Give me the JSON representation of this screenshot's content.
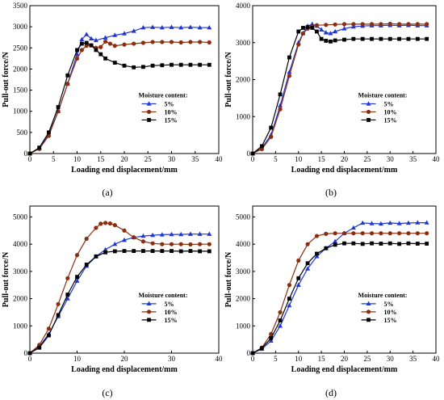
{
  "chart_data": [
    {
      "type": "line",
      "panel_label": "(a)",
      "xlabel": "Loading end displacement/mm",
      "ylabel": "Pull-out force/N",
      "xlim": [
        0,
        40
      ],
      "ylim": [
        0,
        3500
      ],
      "xticks": [
        0,
        5,
        10,
        15,
        20,
        25,
        30,
        35,
        40
      ],
      "yticks": [
        0,
        500,
        1000,
        1500,
        2000,
        2500,
        3000,
        3500
      ],
      "legend_title": "Moisture content:",
      "legend_position": "right-middle",
      "series": [
        {
          "name": "5%",
          "color": "#1f35d6",
          "marker": "triangle",
          "x": [
            0,
            2,
            4,
            6,
            8,
            10,
            11,
            12,
            13,
            14,
            16,
            18,
            20,
            22,
            24,
            26,
            28,
            30,
            32,
            34,
            36,
            38
          ],
          "y": [
            0,
            120,
            450,
            1000,
            1650,
            2350,
            2700,
            2820,
            2720,
            2680,
            2740,
            2800,
            2840,
            2900,
            2980,
            2990,
            2980,
            2990,
            2980,
            2990,
            2980,
            2980
          ]
        },
        {
          "name": "10%",
          "color": "#8b2d0e",
          "marker": "circle",
          "x": [
            0,
            2,
            4,
            6,
            8,
            10,
            11,
            12,
            13,
            14,
            15,
            16,
            17,
            18,
            20,
            22,
            24,
            26,
            28,
            30,
            32,
            34,
            36,
            38
          ],
          "y": [
            0,
            110,
            420,
            1000,
            1650,
            2250,
            2450,
            2550,
            2560,
            2500,
            2520,
            2650,
            2600,
            2550,
            2580,
            2600,
            2620,
            2640,
            2640,
            2640,
            2630,
            2640,
            2640,
            2630
          ]
        },
        {
          "name": "15%",
          "color": "#000000",
          "marker": "square",
          "x": [
            0,
            2,
            4,
            6,
            8,
            10,
            11,
            12,
            13,
            14,
            15,
            16,
            18,
            20,
            22,
            24,
            26,
            28,
            30,
            32,
            34,
            36,
            38
          ],
          "y": [
            0,
            140,
            500,
            1100,
            1850,
            2450,
            2600,
            2620,
            2560,
            2450,
            2350,
            2250,
            2150,
            2080,
            2040,
            2050,
            2080,
            2090,
            2100,
            2100,
            2100,
            2100,
            2100
          ]
        }
      ]
    },
    {
      "type": "line",
      "panel_label": "(b)",
      "xlabel": "Loading end displacement/mm",
      "ylabel": "Pull-out force/N",
      "xlim": [
        0,
        40
      ],
      "ylim": [
        0,
        4000
      ],
      "xticks": [
        0,
        5,
        10,
        15,
        20,
        25,
        30,
        35,
        40
      ],
      "yticks": [
        0,
        1000,
        2000,
        3000,
        4000
      ],
      "legend_title": "Moisture content:",
      "legend_position": "right-middle",
      "series": [
        {
          "name": "5%",
          "color": "#1f35d6",
          "marker": "triangle",
          "x": [
            0,
            2,
            4,
            6,
            8,
            10,
            11,
            12,
            13,
            14,
            15,
            16,
            17,
            18,
            20,
            22,
            24,
            26,
            28,
            30,
            32,
            34,
            36,
            38
          ],
          "y": [
            0,
            150,
            500,
            1300,
            2200,
            3000,
            3250,
            3450,
            3500,
            3450,
            3350,
            3270,
            3250,
            3300,
            3380,
            3430,
            3450,
            3460,
            3460,
            3470,
            3460,
            3470,
            3460,
            3460
          ]
        },
        {
          "name": "10%",
          "color": "#8b2d0e",
          "marker": "circle",
          "x": [
            0,
            2,
            4,
            6,
            8,
            10,
            11,
            12,
            13,
            14,
            16,
            18,
            20,
            22,
            24,
            26,
            28,
            30,
            32,
            34,
            36,
            38
          ],
          "y": [
            0,
            120,
            450,
            1200,
            2100,
            2950,
            3250,
            3380,
            3440,
            3470,
            3480,
            3490,
            3500,
            3500,
            3500,
            3500,
            3500,
            3510,
            3500,
            3500,
            3500,
            3500
          ]
        },
        {
          "name": "15%",
          "color": "#000000",
          "marker": "square",
          "x": [
            0,
            2,
            4,
            6,
            8,
            10,
            11,
            12,
            13,
            14,
            15,
            16,
            17,
            18,
            20,
            22,
            24,
            26,
            28,
            30,
            32,
            34,
            36,
            38
          ],
          "y": [
            0,
            200,
            700,
            1600,
            2600,
            3300,
            3400,
            3420,
            3400,
            3300,
            3100,
            3050,
            3030,
            3060,
            3080,
            3100,
            3100,
            3100,
            3100,
            3100,
            3100,
            3100,
            3100,
            3100
          ]
        }
      ]
    },
    {
      "type": "line",
      "panel_label": "(c)",
      "xlabel": "Loading end displacement/mm",
      "ylabel": "Pull-out force/N",
      "xlim": [
        0,
        40
      ],
      "ylim": [
        0,
        5400
      ],
      "xticks": [
        0,
        10,
        20,
        30,
        40
      ],
      "yticks": [
        0,
        1000,
        2000,
        3000,
        4000,
        5000
      ],
      "legend_title": "Moisture content:",
      "legend_position": "right-middle",
      "series": [
        {
          "name": "5%",
          "color": "#1f35d6",
          "marker": "triangle",
          "x": [
            0,
            2,
            4,
            6,
            8,
            10,
            12,
            14,
            16,
            18,
            20,
            22,
            24,
            26,
            28,
            30,
            32,
            34,
            36,
            38
          ],
          "y": [
            0,
            250,
            700,
            1350,
            2000,
            2650,
            3200,
            3550,
            3800,
            4000,
            4150,
            4250,
            4300,
            4330,
            4350,
            4360,
            4360,
            4370,
            4370,
            4370
          ]
        },
        {
          "name": "10%",
          "color": "#8b2d0e",
          "marker": "circle",
          "x": [
            0,
            2,
            4,
            6,
            8,
            10,
            12,
            14,
            15,
            16,
            17,
            18,
            20,
            22,
            24,
            26,
            28,
            30,
            32,
            34,
            36,
            38
          ],
          "y": [
            0,
            300,
            900,
            1800,
            2750,
            3600,
            4200,
            4600,
            4750,
            4780,
            4760,
            4700,
            4500,
            4250,
            4100,
            4030,
            4000,
            4000,
            4000,
            3990,
            4000,
            4000
          ]
        },
        {
          "name": "15%",
          "color": "#000000",
          "marker": "square",
          "x": [
            0,
            2,
            4,
            6,
            8,
            10,
            12,
            14,
            16,
            18,
            20,
            22,
            24,
            26,
            28,
            30,
            32,
            34,
            36,
            38
          ],
          "y": [
            0,
            200,
            650,
            1400,
            2150,
            2800,
            3250,
            3550,
            3700,
            3740,
            3750,
            3750,
            3750,
            3750,
            3750,
            3750,
            3740,
            3750,
            3740,
            3740
          ]
        }
      ]
    },
    {
      "type": "line",
      "panel_label": "(d)",
      "xlabel": "Loading end displacement/mm",
      "ylabel": "Pull-out force/N",
      "xlim": [
        0,
        40
      ],
      "ylim": [
        0,
        5400
      ],
      "xticks": [
        0,
        5,
        10,
        15,
        20,
        25,
        30,
        35,
        40
      ],
      "yticks": [
        0,
        1000,
        2000,
        3000,
        4000,
        5000
      ],
      "legend_title": "Moisture content:",
      "legend_position": "right-middle",
      "series": [
        {
          "name": "5%",
          "color": "#1f35d6",
          "marker": "triangle",
          "x": [
            0,
            2,
            4,
            6,
            8,
            10,
            12,
            14,
            16,
            18,
            20,
            22,
            24,
            26,
            28,
            30,
            32,
            34,
            36,
            38
          ],
          "y": [
            0,
            150,
            450,
            1000,
            1750,
            2500,
            3100,
            3550,
            3850,
            4100,
            4400,
            4600,
            4780,
            4760,
            4750,
            4780,
            4760,
            4780,
            4790,
            4790
          ]
        },
        {
          "name": "10%",
          "color": "#8b2d0e",
          "marker": "circle",
          "x": [
            0,
            2,
            4,
            6,
            8,
            10,
            12,
            14,
            16,
            18,
            20,
            22,
            24,
            26,
            28,
            30,
            32,
            34,
            36,
            38
          ],
          "y": [
            0,
            200,
            700,
            1500,
            2500,
            3400,
            4000,
            4300,
            4380,
            4400,
            4400,
            4400,
            4400,
            4400,
            4400,
            4400,
            4400,
            4400,
            4400,
            4400
          ]
        },
        {
          "name": "15%",
          "color": "#000000",
          "marker": "square",
          "x": [
            0,
            2,
            4,
            6,
            8,
            10,
            12,
            14,
            16,
            18,
            20,
            22,
            24,
            26,
            28,
            30,
            32,
            34,
            36,
            38
          ],
          "y": [
            0,
            180,
            550,
            1200,
            2000,
            2750,
            3300,
            3650,
            3850,
            3980,
            4030,
            4030,
            4010,
            4030,
            4020,
            4030,
            4010,
            4030,
            4020,
            4020
          ]
        }
      ]
    }
  ]
}
